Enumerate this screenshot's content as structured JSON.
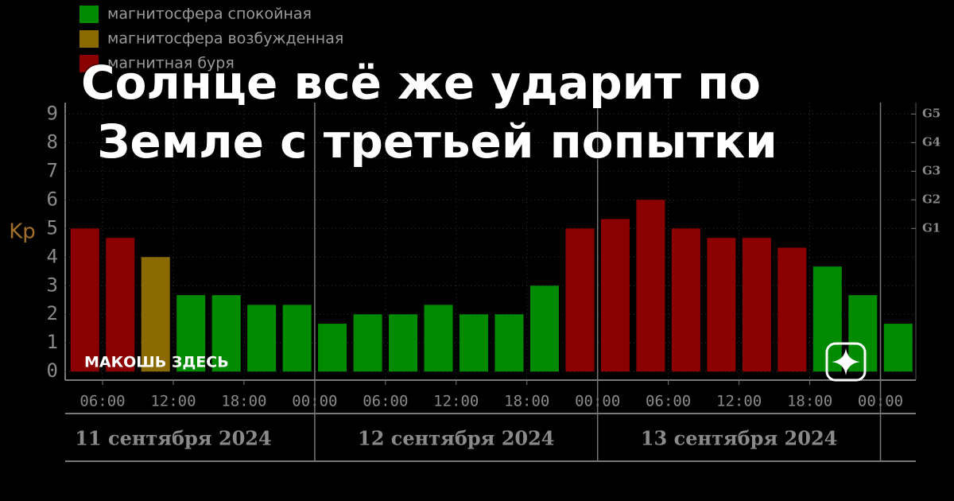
{
  "headline": "Солнце всё же ударит по Земле с третьей попытки",
  "source": "МАКОШЬ ЗДЕСЬ",
  "chart_data": {
    "type": "bar",
    "ylabel": "Kp",
    "legend": [
      {
        "name": "магнитосфера спокойная",
        "color": "#008a00"
      },
      {
        "name": "магнитосфера возбужденная",
        "color": "#8b6a00"
      },
      {
        "name": "магнитная буря",
        "color": "#8b0000"
      }
    ],
    "categories": [
      null,
      null,
      null,
      null,
      null,
      null,
      null,
      null,
      null,
      null,
      null,
      null,
      null,
      null,
      null,
      null,
      null,
      null,
      null,
      null,
      null,
      null,
      null,
      null
    ],
    "x": [
      4.5,
      7.5,
      10.5,
      13.5,
      16.5,
      19.5,
      22.5,
      25.5,
      28.5,
      31.5,
      34.5,
      37.5,
      40.5,
      43.5,
      46.5,
      49.5,
      52.5,
      55.5,
      58.5,
      61.5,
      64.5,
      67.5,
      70.5,
      73.5
    ],
    "values": [
      5,
      4.67,
      4,
      2.67,
      2.67,
      2.33,
      2.33,
      1.67,
      2,
      2,
      2.33,
      2,
      2,
      3,
      5,
      5.33,
      6,
      5,
      4.67,
      4.67,
      4.33,
      3.67,
      2.67,
      1.67
    ],
    "colors": [
      "#8b0000",
      "#8b0000",
      "#8b6a00",
      "#008a00",
      "#008a00",
      "#008a00",
      "#008a00",
      "#008a00",
      "#008a00",
      "#008a00",
      "#008a00",
      "#008a00",
      "#008a00",
      "#008a00",
      "#8b0000",
      "#8b0000",
      "#8b0000",
      "#8b0000",
      "#8b0000",
      "#8b0000",
      "#8b0000",
      "#008a00",
      "#008a00",
      "#008a00"
    ],
    "xlim": [
      2.83,
      75
    ],
    "xticks": [
      {
        "value": 6,
        "label": "06:00"
      },
      {
        "value": 12,
        "label": "12:00"
      },
      {
        "value": 18,
        "label": "18:00"
      },
      {
        "value": 24,
        "label": "00:00"
      },
      {
        "value": 30,
        "label": "06:00"
      },
      {
        "value": 36,
        "label": "12:00"
      },
      {
        "value": 42,
        "label": "18:00"
      },
      {
        "value": 48,
        "label": "00:00"
      },
      {
        "value": 54,
        "label": "06:00"
      },
      {
        "value": 60,
        "label": "12:00"
      },
      {
        "value": 66,
        "label": "18:00"
      },
      {
        "value": 72,
        "label": "00:00"
      }
    ],
    "day_labels": [
      "11 сентября 2024",
      "12 сентября 2024",
      "13 сентября 2024"
    ],
    "ylim": [
      -0.3,
      9.4
    ],
    "yticks": [
      0,
      1,
      2,
      3,
      4,
      5,
      6,
      7,
      8,
      9
    ],
    "y2lim": [
      -0.3,
      9.4
    ],
    "y2ticks": [
      {
        "value": 5,
        "label": "G1"
      },
      {
        "value": 6,
        "label": "G2"
      },
      {
        "value": 7,
        "label": "G3"
      },
      {
        "value": 8,
        "label": "G4"
      },
      {
        "value": 9,
        "label": "G5"
      }
    ],
    "grid": true
  }
}
